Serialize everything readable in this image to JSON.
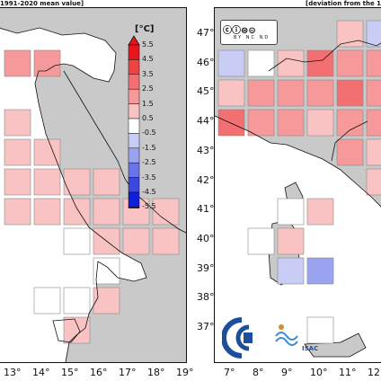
{
  "captions": {
    "left": "1991-2020 mean value]",
    "right": "[deviation from the 1"
  },
  "colorbar": {
    "unit": "[°C]",
    "ticks": [
      "5.5",
      "4.5",
      "3.5",
      "2.5",
      "1.5",
      "0.5",
      "-0.5",
      "-1.5",
      "-2.5",
      "-3.5",
      "-4.5",
      "-5.5"
    ],
    "colors": [
      "#e8161c",
      "#ee4446",
      "#f27072",
      "#f6999a",
      "#fac3c3",
      "#ffffff",
      "#c9cdf5",
      "#9aa3ef",
      "#6a74e6",
      "#3c47de",
      "#1020d8"
    ]
  },
  "axes": {
    "left_lon": [
      "13°",
      "14°",
      "15°",
      "16°",
      "17°",
      "18°",
      "19°"
    ],
    "right_lon": [
      "7°",
      "8°",
      "9°",
      "10°",
      "11°",
      "12°"
    ],
    "lat": [
      "47°",
      "46°",
      "45°",
      "44°",
      "43°",
      "42°",
      "41°",
      "40°",
      "39°",
      "38°",
      "37°"
    ]
  },
  "cells_left": [
    {
      "c": 0,
      "r": 1,
      "v": 1.5
    },
    {
      "c": 1,
      "r": 1,
      "v": 1.5
    },
    {
      "c": 0,
      "r": 3,
      "v": 0.8
    },
    {
      "c": 0,
      "r": 4,
      "v": 0.8
    },
    {
      "c": 1,
      "r": 4,
      "v": 0.8
    },
    {
      "c": 0,
      "r": 5,
      "v": 0.8
    },
    {
      "c": 1,
      "r": 5,
      "v": 0.8
    },
    {
      "c": 2,
      "r": 5,
      "v": 0.8
    },
    {
      "c": 3,
      "r": 5,
      "v": 0.8
    },
    {
      "c": 0,
      "r": 6,
      "v": 1.2
    },
    {
      "c": 1,
      "r": 6,
      "v": 0.8
    },
    {
      "c": 2,
      "r": 6,
      "v": 0.8
    },
    {
      "c": 3,
      "r": 6,
      "v": 0.8
    },
    {
      "c": 4,
      "r": 6,
      "v": 1.2
    },
    {
      "c": 5,
      "r": 6,
      "v": 0.8
    },
    {
      "c": 2,
      "r": 7,
      "v": 0
    },
    {
      "c": 3,
      "r": 7,
      "v": 0.8
    },
    {
      "c": 4,
      "r": 7,
      "v": 0.8
    },
    {
      "c": 5,
      "r": 7,
      "v": 0.8
    },
    {
      "c": 3,
      "r": 8,
      "v": 0
    },
    {
      "c": 1,
      "r": 9,
      "v": 0
    },
    {
      "c": 2,
      "r": 9,
      "v": 0
    },
    {
      "c": 3,
      "r": 9,
      "v": 0.8
    },
    {
      "c": 2,
      "r": 10,
      "v": 0.8
    }
  ],
  "cells_right": [
    {
      "c": 4,
      "r": 0,
      "v": 1.2
    },
    {
      "c": 5,
      "r": 0,
      "v": -0.8
    },
    {
      "c": 0,
      "r": 1,
      "v": -0.8
    },
    {
      "c": 1,
      "r": 1,
      "v": 0
    },
    {
      "c": 2,
      "r": 1,
      "v": 0.8
    },
    {
      "c": 3,
      "r": 1,
      "v": 2.5
    },
    {
      "c": 4,
      "r": 1,
      "v": 1.5
    },
    {
      "c": 5,
      "r": 1,
      "v": 1.5
    },
    {
      "c": 0,
      "r": 2,
      "v": 1.2
    },
    {
      "c": 1,
      "r": 2,
      "v": 1.5
    },
    {
      "c": 2,
      "r": 2,
      "v": 1.5
    },
    {
      "c": 3,
      "r": 2,
      "v": 2
    },
    {
      "c": 4,
      "r": 2,
      "v": 2.5
    },
    {
      "c": 5,
      "r": 2,
      "v": 2
    },
    {
      "c": 0,
      "r": 3,
      "v": 2.5
    },
    {
      "c": 1,
      "r": 3,
      "v": 2
    },
    {
      "c": 2,
      "r": 3,
      "v": 1.5
    },
    {
      "c": 3,
      "r": 3,
      "v": 0.8
    },
    {
      "c": 4,
      "r": 3,
      "v": 2
    },
    {
      "c": 5,
      "r": 3,
      "v": 2
    },
    {
      "c": 4,
      "r": 4,
      "v": 1.5
    },
    {
      "c": 5,
      "r": 4,
      "v": 1.2
    },
    {
      "c": 5,
      "r": 5,
      "v": 0.8
    },
    {
      "c": 2,
      "r": 6,
      "v": 0
    },
    {
      "c": 3,
      "r": 6,
      "v": 0.8
    },
    {
      "c": 1,
      "r": 7,
      "v": 0
    },
    {
      "c": 2,
      "r": 7,
      "v": 0.8
    },
    {
      "c": 2,
      "r": 8,
      "v": -0.8
    },
    {
      "c": 3,
      "r": 8,
      "v": -1.8
    },
    {
      "c": 3,
      "r": 10,
      "v": 0
    }
  ]
}
